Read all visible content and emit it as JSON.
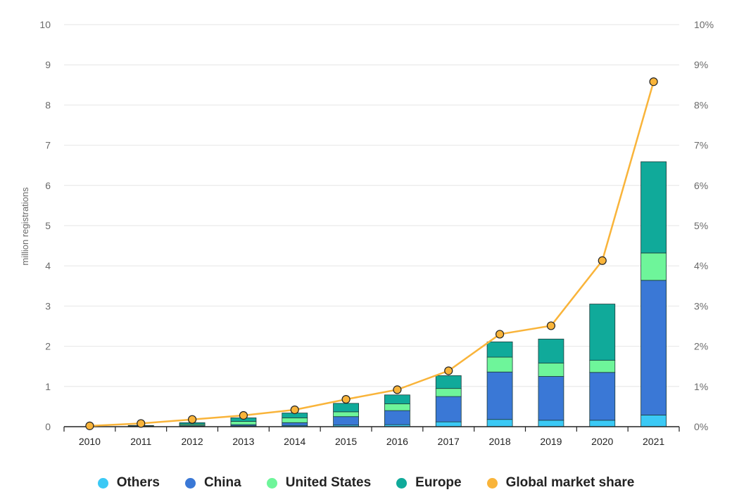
{
  "chart_data": {
    "type": "bar",
    "categories": [
      "2010",
      "2011",
      "2012",
      "2013",
      "2014",
      "2015",
      "2016",
      "2017",
      "2018",
      "2019",
      "2020",
      "2021"
    ],
    "ylabel": "million registrations",
    "ylim": [
      0,
      10
    ],
    "y_ticks": [
      "0",
      "1",
      "2",
      "3",
      "4",
      "5",
      "6",
      "7",
      "8",
      "9",
      "10"
    ],
    "y2lim": [
      0,
      10
    ],
    "y2_ticks": [
      "0%",
      "1%",
      "2%",
      "3%",
      "4%",
      "5%",
      "6%",
      "7%",
      "8%",
      "9%",
      "10%"
    ],
    "grid": true,
    "legend_position": "bottom",
    "series": [
      {
        "name": "Others",
        "kind": "bar",
        "color": "#3bc9f5",
        "values": [
          0.0,
          0.005,
          0.01,
          0.02,
          0.03,
          0.04,
          0.05,
          0.12,
          0.18,
          0.16,
          0.16,
          0.29
        ]
      },
      {
        "name": "China",
        "kind": "bar",
        "color": "#3a78d6",
        "values": [
          0.0,
          0.005,
          0.02,
          0.03,
          0.07,
          0.21,
          0.35,
          0.63,
          1.18,
          1.09,
          1.19,
          3.35
        ]
      },
      {
        "name": "United States",
        "kind": "bar",
        "color": "#6ef59a",
        "values": [
          0.0,
          0.01,
          0.03,
          0.08,
          0.12,
          0.12,
          0.17,
          0.2,
          0.37,
          0.33,
          0.3,
          0.68
        ]
      },
      {
        "name": "Europe",
        "kind": "bar",
        "color": "#10aa9a",
        "values": [
          0.0,
          0.01,
          0.04,
          0.09,
          0.12,
          0.21,
          0.22,
          0.32,
          0.38,
          0.6,
          1.4,
          2.27
        ]
      },
      {
        "name": "Global market share",
        "kind": "line",
        "axis": "right",
        "unit": "%",
        "color": "#f9b43a",
        "values": [
          0.02,
          0.08,
          0.18,
          0.28,
          0.42,
          0.68,
          0.92,
          1.39,
          2.3,
          2.51,
          4.13,
          8.58
        ]
      }
    ]
  }
}
